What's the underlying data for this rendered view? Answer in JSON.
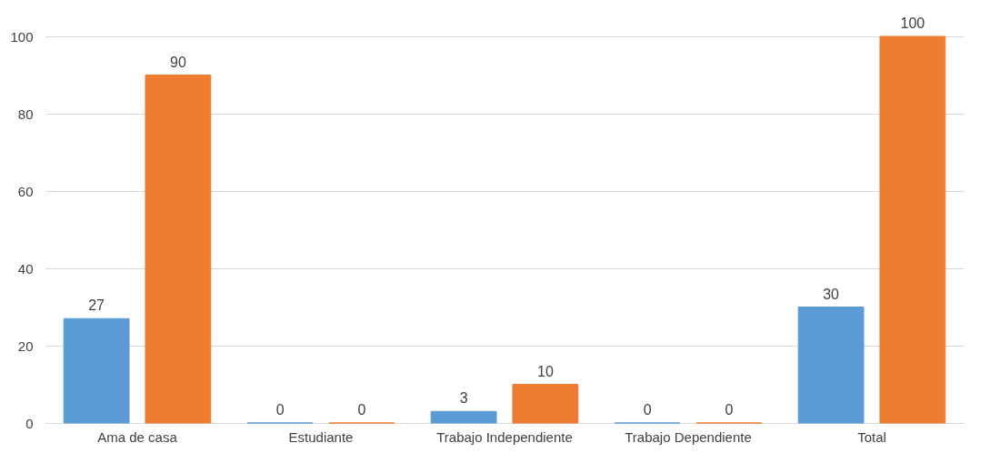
{
  "chart_data": {
    "type": "bar",
    "categories": [
      "Ama de casa",
      "Estudiante",
      "Trabajo Independiente",
      "Trabajo Dependiente",
      "Total"
    ],
    "series": [
      {
        "color": "#5b9bd5",
        "values": [
          27,
          0,
          3,
          0,
          30
        ]
      },
      {
        "color": "#ed7d31",
        "values": [
          90,
          0,
          10,
          0,
          100
        ]
      }
    ],
    "ylim": [
      0,
      100
    ],
    "yticks": [
      0,
      20,
      40,
      60,
      80,
      100
    ],
    "grid": "y",
    "data_labels": true,
    "legend": false
  }
}
